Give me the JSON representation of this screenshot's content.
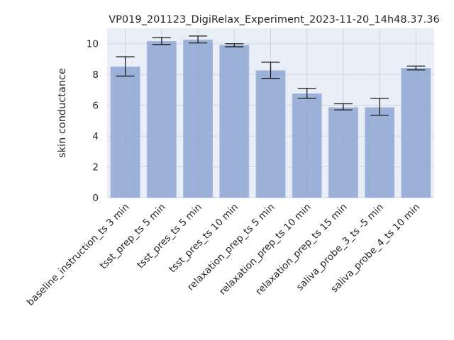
{
  "chart_data": {
    "type": "bar",
    "title": "VP019_201123_DigiRelax_Experiment_2023-11-20_14h48.37.36",
    "xlabel": "",
    "ylabel": "skin conductance",
    "ylim": [
      0,
      11
    ],
    "yticks": [
      0,
      2,
      4,
      6,
      8,
      10
    ],
    "categories": [
      "baseline_instruction_ts 3 min",
      "tsst_prep_ts 5 min",
      "tsst_pres_ts 5 min",
      "tsst_pres_ts 10 min",
      "relaxation_prep_ts 5 min",
      "relaxation_prep_ts 10 min",
      "relaxation_prep_ts 15 min",
      "saliva_probe_3_ts -5 min",
      "saliva_probe_4_ts 10 min"
    ],
    "values": [
      8.5,
      10.15,
      10.25,
      9.9,
      8.25,
      6.75,
      5.85,
      5.85,
      8.4
    ],
    "error_bars": [
      {
        "low": 7.9,
        "high": 9.15
      },
      {
        "low": 9.95,
        "high": 10.4
      },
      {
        "low": 10.05,
        "high": 10.5
      },
      {
        "low": 9.8,
        "high": 10.0
      },
      {
        "low": 7.75,
        "high": 8.8
      },
      {
        "low": 6.45,
        "high": 7.1
      },
      {
        "low": 5.7,
        "high": 6.1
      },
      {
        "low": 5.35,
        "high": 6.45
      },
      {
        "low": 8.3,
        "high": 8.55
      }
    ],
    "grid": true,
    "colors": {
      "bar": "#8ea6d2",
      "bar_edge": "#a9bbe0",
      "background": "#eaeef6",
      "grid": "#cfd3dc",
      "error": "#1a1a1a",
      "text": "#262626"
    }
  }
}
